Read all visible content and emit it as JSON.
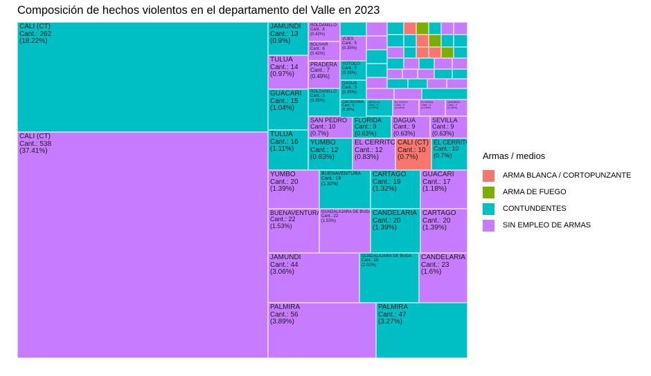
{
  "chart_data": {
    "type": "treemap",
    "title": "Composición de hechos violentos en el departamento del Valle en 2023",
    "legend": {
      "title": "Armas / medios",
      "position": "right",
      "entries": [
        {
          "name": "ARMA BLANCA / CORTOPUNZANTE",
          "color": "#F8766D"
        },
        {
          "name": "ARMA DE FUEGO",
          "color": "#7CAE00"
        },
        {
          "name": "CONTUNDENTES",
          "color": "#00BFC4"
        },
        {
          "name": "SIN EMPLEO DE ARMAS",
          "color": "#C77CFF"
        }
      ]
    },
    "tiles": [
      {
        "name": "CALI (CT)",
        "category": "SIN EMPLEO DE ARMAS",
        "count": 538,
        "pct": "37.41%",
        "count_label": "Cant.: 538",
        "pct_label": "(37.41%)"
      },
      {
        "name": "CALI (CT)",
        "category": "CONTUNDENTES",
        "count": 262,
        "pct": "18.22%",
        "count_label": "Cant.: 262",
        "pct_label": "(18.22%)"
      },
      {
        "name": "PALMIRA",
        "category": "SIN EMPLEO DE ARMAS",
        "count": 56,
        "pct": "3.89%",
        "count_label": "Cant.: 56",
        "pct_label": "(3.89%)"
      },
      {
        "name": "PALMIRA",
        "category": "CONTUNDENTES",
        "count": 47,
        "pct": "3.27%",
        "count_label": "Cant.: 47",
        "pct_label": "(3.27%)"
      },
      {
        "name": "JAMUNDÍ",
        "category": "SIN EMPLEO DE ARMAS",
        "count": 44,
        "pct": "3.06%",
        "count_label": "Cant.: 44",
        "pct_label": "(3.06%)"
      },
      {
        "name": "GUADALAJARA DE BUGA",
        "category": "CONTUNDENTES",
        "count": 29,
        "pct": "2.02%",
        "count_label": "Cant.: 29",
        "pct_label": "(2.02%)"
      },
      {
        "name": "CANDELARIA",
        "category": "SIN EMPLEO DE ARMAS",
        "count": 23,
        "pct": "1.6%",
        "count_label": "Cant.: 23",
        "pct_label": "(1.6%)"
      },
      {
        "name": "BUENAVENTURA",
        "category": "SIN EMPLEO DE ARMAS",
        "count": 22,
        "pct": "1.53%",
        "count_label": "Cant.: 22",
        "pct_label": "(1.53%)"
      },
      {
        "name": "GUADALAJARA DE BUGA",
        "category": "SIN EMPLEO DE ARMAS",
        "count": 22,
        "pct": "1.53%",
        "count_label": "Cant.: 22",
        "pct_label": "(1.53%)"
      },
      {
        "name": "CANDELARIA",
        "category": "CONTUNDENTES",
        "count": 20,
        "pct": "1.39%",
        "count_label": "Cant.: 20",
        "pct_label": "(1.39%)"
      },
      {
        "name": "CARTAGO",
        "category": "SIN EMPLEO DE ARMAS",
        "count": 20,
        "pct": "1.39%",
        "count_label": "Cant.: 20",
        "pct_label": "(1.39%)"
      },
      {
        "name": "YUMBO",
        "category": "SIN EMPLEO DE ARMAS",
        "count": 20,
        "pct": "1.39%",
        "count_label": "Cant.: 20",
        "pct_label": "(1.39%)"
      },
      {
        "name": "BUENAVENTURA",
        "category": "CONTUNDENTES",
        "count": 19,
        "pct": "1.32%",
        "count_label": "Cant.: 19",
        "pct_label": "(1.32%)"
      },
      {
        "name": "CARTAGO",
        "category": "CONTUNDENTES",
        "count": 19,
        "pct": "1.32%",
        "count_label": "Cant.: 19",
        "pct_label": "(1.32%)"
      },
      {
        "name": "GUACARÍ",
        "category": "SIN EMPLEO DE ARMAS",
        "count": 17,
        "pct": "1.18%",
        "count_label": "Cant.: 17",
        "pct_label": "(1.18%)"
      },
      {
        "name": "TULUÁ",
        "category": "CONTUNDENTES",
        "count": 16,
        "pct": "1.11%",
        "count_label": "Cant.: 16",
        "pct_label": "(1.11%)"
      },
      {
        "name": "GUACARÍ",
        "category": "CONTUNDENTES",
        "count": 15,
        "pct": "1.04%",
        "count_label": "Cant.: 15",
        "pct_label": "(1.04%)"
      },
      {
        "name": "TULUÁ",
        "category": "SIN EMPLEO DE ARMAS",
        "count": 14,
        "pct": "0.97%",
        "count_label": "Cant.: 14",
        "pct_label": "(0.97%)"
      },
      {
        "name": "JAMUNDÍ",
        "category": "CONTUNDENTES",
        "count": 13,
        "pct": "0.9%",
        "count_label": "Cant.: 13",
        "pct_label": "(0.9%)"
      },
      {
        "name": "YUMBO",
        "category": "CONTUNDENTES",
        "count": 12,
        "pct": "0.83%",
        "count_label": "Cant.: 12",
        "pct_label": "(0.83%)"
      },
      {
        "name": "EL CERRITO",
        "category": "SIN EMPLEO DE ARMAS",
        "count": 12,
        "pct": "0.83%",
        "count_label": "Cant.: 12",
        "pct_label": "(0.83%)"
      },
      {
        "name": "CALI (CT)",
        "category": "ARMA BLANCA / CORTOPUNZANTE",
        "count": 10,
        "pct": "0.7%",
        "count_label": "Cant.: 10",
        "pct_label": "(0.7%)"
      },
      {
        "name": "EL CERRITO",
        "category": "CONTUNDENTES",
        "count": 10,
        "pct": "0.7%",
        "count_label": "Cant.: 10",
        "pct_label": "(0.7%)"
      },
      {
        "name": "SAN PEDRO",
        "category": "SIN EMPLEO DE ARMAS",
        "count": 10,
        "pct": "0.7%",
        "count_label": "Cant.: 10",
        "pct_label": "(0.7%)"
      },
      {
        "name": "FLORIDA",
        "category": "CONTUNDENTES",
        "count": 9,
        "pct": "0.63%",
        "count_label": "Cant.: 9",
        "pct_label": "(0.63%)"
      },
      {
        "name": "DAGUA",
        "category": "SIN EMPLEO DE ARMAS",
        "count": 9,
        "pct": "0.63%",
        "count_label": "Cant.: 9",
        "pct_label": "(0.63%)"
      },
      {
        "name": "SEVILLA",
        "category": "SIN EMPLEO DE ARMAS",
        "count": 9,
        "pct": "0.63%",
        "count_label": "Cant.: 9",
        "pct_label": "(0.63%)"
      },
      {
        "name": "ROLDANILLO",
        "category": "SIN EMPLEO DE ARMAS",
        "count": 6,
        "pct": "0.42%",
        "count_label": "Cant.: 6",
        "pct_label": "(0.42%)"
      },
      {
        "name": "BOLÍVAR",
        "category": "SIN EMPLEO DE ARMAS",
        "count": 6,
        "pct": "0.42%",
        "count_label": "Cant.: 6",
        "pct_label": "(0.42%)"
      },
      {
        "name": "PRADERA",
        "category": "SIN EMPLEO DE ARMAS",
        "count": 7,
        "pct": "0.49%",
        "count_label": "Cant.: 7",
        "pct_label": "(0.49%)"
      },
      {
        "name": "ROLDANILLO",
        "category": "CONTUNDENTES",
        "count": 5,
        "pct": "0.35%",
        "count_label": "Cant.: 5",
        "pct_label": "(0.35%)"
      },
      {
        "name": "VIJES",
        "category": "SIN EMPLEO DE ARMAS",
        "count": 5,
        "pct": "0.35%",
        "count_label": "Cant.: 5",
        "pct_label": "(0.35%)"
      },
      {
        "name": "YOTOCO",
        "category": "CONTUNDENTES",
        "count": 5,
        "pct": "0.35%",
        "count_label": "Cant.: 5",
        "pct_label": "(0.35%)"
      },
      {
        "name": "DAGUA",
        "category": "CONTUNDENTES",
        "count": 5,
        "pct": "0.35%",
        "count_label": "Cant.: 5",
        "pct_label": "(0.35%)"
      },
      {
        "name": "CAICEDONIA",
        "category": "CONTUNDENTES",
        "count": 5,
        "pct": "0.35%",
        "count_label": "Cant.: 5",
        "pct_label": "(0.35%)"
      },
      {
        "name": "SEVILLA",
        "category": "CONTUNDENTES",
        "count": 4,
        "pct": "0.28%",
        "count_label": "Cant.: 4",
        "pct_label": "(0.28%)"
      },
      {
        "name": "EL DOVIO",
        "category": "SIN EMPLEO DE ARMAS",
        "count": 4,
        "pct": "0.28%",
        "count_label": "Cant.: 4",
        "pct_label": "(0.28%)"
      },
      {
        "name": "FLORIDA",
        "category": "SIN EMPLEO DE ARMAS",
        "count": 4,
        "pct": "0.28%",
        "count_label": "Cant.: 4",
        "pct_label": "(0.28%)"
      },
      {
        "name": "GINEBRA",
        "category": "SIN EMPLEO DE ARMAS",
        "count": 4,
        "pct": "0.28%",
        "count_label": "Cant.: 4",
        "pct_label": "(0.28%)"
      }
    ],
    "small_tiles": [
      {
        "category": "CONTUNDENTES"
      },
      {
        "category": "SIN EMPLEO DE ARMAS"
      },
      {
        "category": "CONTUNDENTES"
      },
      {
        "category": "ARMA BLANCA / CORTOPUNZANTE"
      },
      {
        "category": "ARMA DE FUEGO"
      },
      {
        "category": "CONTUNDENTES"
      },
      {
        "category": "SIN EMPLEO DE ARMAS"
      },
      {
        "category": "SIN EMPLEO DE ARMAS"
      },
      {
        "category": "SIN EMPLEO DE ARMAS"
      },
      {
        "category": "CONTUNDENTES"
      },
      {
        "category": "CONTUNDENTES"
      },
      {
        "category": "ARMA BLANCA / CORTOPUNZANTE"
      },
      {
        "category": "ARMA DE FUEGO"
      },
      {
        "category": "CONTUNDENTES"
      },
      {
        "category": "CONTUNDENTES"
      },
      {
        "category": "CONTUNDENTES"
      },
      {
        "category": "SIN EMPLEO DE ARMAS"
      },
      {
        "category": "CONTUNDENTES"
      },
      {
        "category": "ARMA BLANCA / CORTOPUNZANTE"
      },
      {
        "category": "ARMA BLANCA / CORTOPUNZANTE"
      },
      {
        "category": "ARMA DE FUEGO"
      },
      {
        "category": "CONTUNDENTES"
      },
      {
        "category": "CONTUNDENTES"
      },
      {
        "category": "CONTUNDENTES"
      },
      {
        "category": "SIN EMPLEO DE ARMAS"
      },
      {
        "category": "CONTUNDENTES"
      },
      {
        "category": "SIN EMPLEO DE ARMAS"
      },
      {
        "category": "SIN EMPLEO DE ARMAS"
      },
      {
        "category": "SIN EMPLEO DE ARMAS"
      },
      {
        "category": "SIN EMPLEO DE ARMAS"
      },
      {
        "category": "SIN EMPLEO DE ARMAS"
      },
      {
        "category": "SIN EMPLEO DE ARMAS"
      },
      {
        "category": "CONTUNDENTES"
      },
      {
        "category": "CONTUNDENTES"
      },
      {
        "category": "CONTUNDENTES"
      },
      {
        "category": "CONTUNDENTES"
      },
      {
        "category": "SIN EMPLEO DE ARMAS"
      },
      {
        "category": "SIN EMPLEO DE ARMAS"
      },
      {
        "category": "SIN EMPLEO DE ARMAS"
      },
      {
        "category": "SIN EMPLEO DE ARMAS"
      },
      {
        "category": "CONTUNDENTES"
      }
    ]
  }
}
